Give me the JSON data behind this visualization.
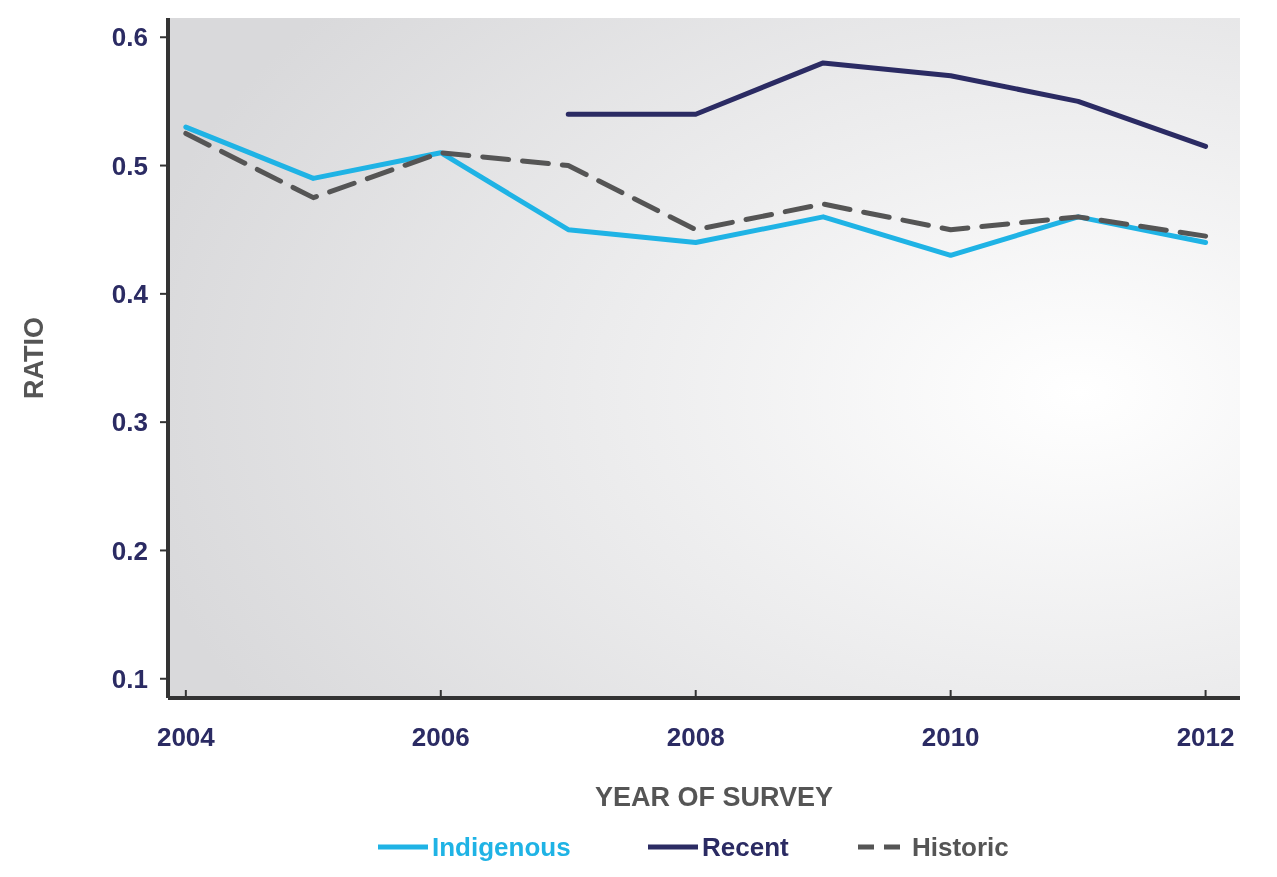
{
  "chart_data": {
    "type": "line",
    "xlabel": "YEAR OF SURVEY",
    "ylabel": "RATIO",
    "x": [
      2004,
      2005,
      2006,
      2007,
      2008,
      2009,
      2010,
      2011,
      2012
    ],
    "series": [
      {
        "name": "Indigenous",
        "color": "#1fb3e5",
        "line_style": "solid",
        "values": [
          0.53,
          0.49,
          0.51,
          0.45,
          0.44,
          0.46,
          0.43,
          0.46,
          0.44
        ]
      },
      {
        "name": "Recent",
        "color": "#2b2b63",
        "line_style": "solid",
        "values": [
          null,
          null,
          null,
          0.54,
          0.54,
          0.58,
          0.57,
          0.55,
          0.515
        ]
      },
      {
        "name": "Historic",
        "color": "#555555",
        "line_style": "dashed",
        "values": [
          0.525,
          0.475,
          0.51,
          0.5,
          0.45,
          0.47,
          0.45,
          0.46,
          0.445
        ]
      }
    ],
    "xlim": [
      2003.86,
      2012.27
    ],
    "ylim": [
      0.085,
      0.615
    ],
    "xticks": [
      2004,
      2006,
      2008,
      2010,
      2012
    ],
    "yticks": [
      0.1,
      0.2,
      0.3,
      0.4,
      0.5,
      0.6
    ],
    "grid": false,
    "legend": "bottom",
    "marker": "none"
  }
}
